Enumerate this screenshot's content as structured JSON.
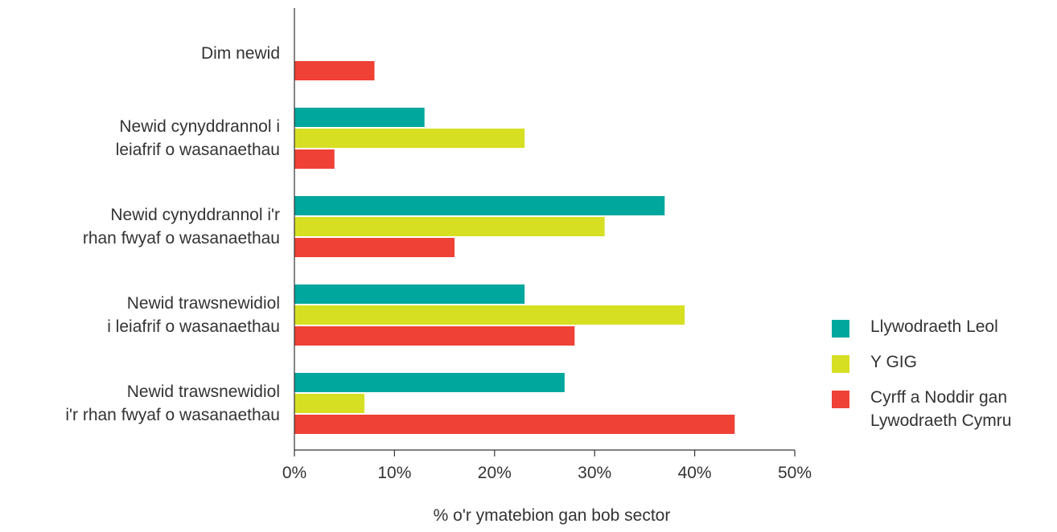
{
  "chart_data": {
    "type": "bar",
    "orientation": "horizontal",
    "categories": [
      [
        "Dim newid"
      ],
      [
        "Newid cynyddrannol i",
        "leiafrif o wasanaethau"
      ],
      [
        "Newid cynyddrannol i'r",
        "rhan fwyaf o wasanaethau"
      ],
      [
        "Newid trawsnewidiol",
        "i leiafrif o wasanaethau"
      ],
      [
        "Newid trawsnewidiol",
        "i'r rhan fwyaf o wasanaethau"
      ]
    ],
    "series": [
      {
        "name": [
          "Llywodraeth Leol"
        ],
        "color": "#00a79d",
        "values": [
          0,
          13,
          37,
          23,
          27
        ]
      },
      {
        "name": [
          "Y GIG"
        ],
        "color": "#d7df23",
        "values": [
          0,
          23,
          31,
          39,
          7
        ]
      },
      {
        "name": [
          "Cyrff a Noddir gan",
          "Lywodraeth Cymru"
        ],
        "color": "#ef4136",
        "values": [
          8,
          4,
          16,
          28,
          44
        ]
      }
    ],
    "xlabel": "% o'r ymatebion gan bob sector",
    "ylabel": "",
    "xlim": [
      0,
      50
    ],
    "xticks": [
      "0%",
      "10%",
      "20%",
      "30%",
      "40%",
      "50%"
    ],
    "grid": false,
    "legend_position": "right"
  }
}
